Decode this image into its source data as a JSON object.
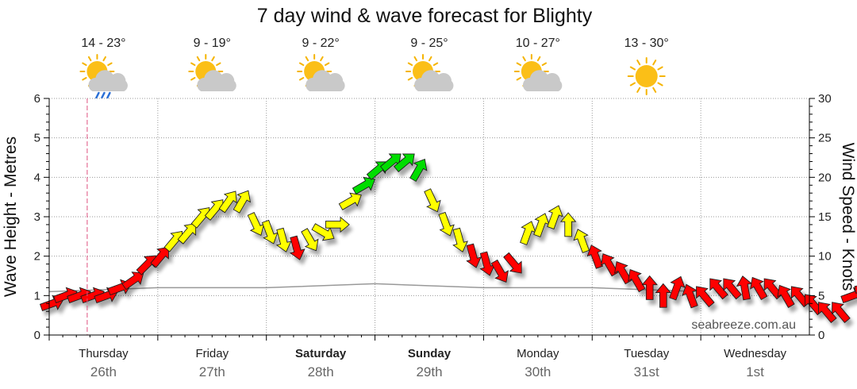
{
  "chart_data": {
    "type": "line",
    "title": "7 day wind & wave forecast for Blighty",
    "ylabel": "Wave Height - Metres",
    "y2label": "Wind Speed - Knots",
    "ylim": [
      0,
      6
    ],
    "y2lim": [
      0,
      30
    ],
    "yticks": [
      "0",
      "1",
      "2",
      "3",
      "4",
      "5",
      "6"
    ],
    "y2ticks": [
      "0",
      "5",
      "10",
      "15",
      "20",
      "25",
      "30"
    ],
    "days": [
      {
        "name": "Thursday",
        "date": "26th",
        "temp": "14 - 23°",
        "icon": "sun-cloud-rain-icon",
        "bold": false
      },
      {
        "name": "Friday",
        "date": "27th",
        "temp": "9 - 19°",
        "icon": "sun-cloud-icon",
        "bold": false
      },
      {
        "name": "Saturday",
        "date": "28th",
        "temp": "9 - 22°",
        "icon": "sun-cloud-icon",
        "bold": true
      },
      {
        "name": "Sunday",
        "date": "29th",
        "temp": "9 - 25°",
        "icon": "sun-cloud-icon",
        "bold": true
      },
      {
        "name": "Monday",
        "date": "30th",
        "temp": "10 - 27°",
        "icon": "sun-cloud-icon",
        "bold": false
      },
      {
        "name": "Tuesday",
        "date": "31st",
        "temp": "13 - 30°",
        "icon": "sun-icon",
        "bold": false
      },
      {
        "name": "Wednesday",
        "date": "1st",
        "temp": "",
        "icon": "",
        "bold": false
      }
    ],
    "wind": {
      "start_day": 0,
      "step_hours": 3,
      "speeds_knots": [
        4,
        5,
        5,
        5,
        5,
        6,
        7,
        9,
        10,
        12,
        13,
        15,
        16,
        17,
        17,
        14,
        13,
        12,
        11,
        12,
        13,
        14,
        17,
        19,
        21,
        22,
        22,
        21,
        17,
        14,
        12,
        10,
        9,
        8,
        9,
        13,
        14,
        15,
        14,
        12,
        10,
        9,
        8,
        7,
        6,
        5,
        6,
        5,
        5,
        6,
        6,
        6,
        6,
        6,
        5,
        5,
        4,
        3,
        3,
        5,
        6,
        5,
        5,
        5,
        5,
        5,
        5,
        6,
        8,
        9,
        9,
        8,
        7,
        7,
        6,
        6,
        7
      ],
      "directions_deg": [
        250,
        250,
        250,
        250,
        250,
        250,
        235,
        225,
        220,
        220,
        220,
        220,
        220,
        215,
        210,
        335,
        340,
        345,
        345,
        330,
        300,
        270,
        240,
        240,
        230,
        230,
        230,
        210,
        335,
        340,
        345,
        345,
        345,
        330,
        320,
        200,
        200,
        200,
        180,
        160,
        160,
        150,
        150,
        150,
        180,
        180,
        200,
        160,
        140,
        140,
        140,
        170,
        150,
        140,
        150,
        140,
        140,
        140,
        140,
        250,
        260,
        270,
        270,
        280,
        290,
        270,
        250,
        240,
        230,
        220,
        220,
        220,
        230,
        240,
        260,
        270,
        270
      ],
      "colors": {
        "light": "#ff0000",
        "moderate": "#ffff00",
        "strong": "#00dd00"
      }
    },
    "wave": {
      "values_m": [
        1.1,
        1.2,
        1.2,
        1.3,
        1.2,
        1.2,
        1.1
      ]
    },
    "now_marker_day": 0.35,
    "credit": "seabreeze.com.au"
  }
}
